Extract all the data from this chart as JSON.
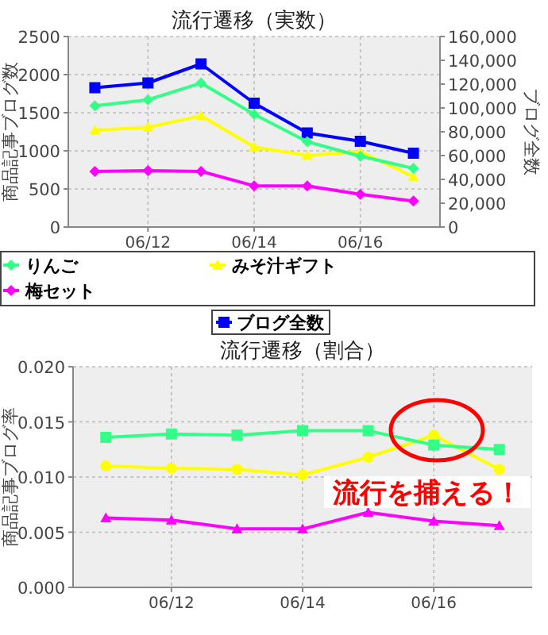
{
  "chart_data": [
    {
      "type": "line",
      "title": "流行遷移（実数）",
      "ylabel": "商品記事ブログ数",
      "y2label": "ブログ全数",
      "categories": [
        null,
        "06/12",
        null,
        "06/14",
        null,
        "06/16",
        null
      ],
      "series": [
        {
          "name": "りんご",
          "color": "#33ff88",
          "marker": "diamond",
          "values": [
            1590,
            1670,
            1890,
            1480,
            1120,
            930,
            770
          ]
        },
        {
          "name": "みそ汁ギフト",
          "color": "#ffff00",
          "marker": "triangle",
          "values": [
            1270,
            1310,
            1460,
            1050,
            940,
            990,
            660
          ]
        },
        {
          "name": "梅セット",
          "color": "#ff00ff",
          "marker": "diamond",
          "values": [
            730,
            740,
            730,
            540,
            540,
            430,
            340
          ]
        },
        {
          "name": "ブログ全数",
          "color": "#0000ff",
          "marker": "square",
          "axis": "y2",
          "values": [
            117000,
            121000,
            137000,
            104000,
            79000,
            72000,
            62000
          ]
        }
      ],
      "ylim": [
        0,
        2500
      ],
      "yticks": [
        0,
        500,
        1000,
        1500,
        2000,
        2500
      ],
      "y2lim": [
        0,
        160000
      ],
      "y2ticks": [
        0,
        {
          "value": 20000,
          "label": "20,000"
        },
        {
          "value": 40000,
          "label": "40,000"
        },
        {
          "value": 60000,
          "label": "60,000"
        },
        {
          "value": 80000,
          "label": "80,000"
        },
        {
          "value": 100000,
          "label": "100,000"
        },
        {
          "value": 120000,
          "label": "120,000"
        },
        {
          "value": 140000,
          "label": "140,000"
        },
        {
          "value": 160000,
          "label": "160,000"
        }
      ],
      "grid": true,
      "legend": "bottom"
    },
    {
      "type": "line",
      "title": "流行遷移（割合）",
      "ylabel": "商品記事ブログ率",
      "categories": [
        null,
        "06/12",
        null,
        "06/14",
        null,
        "06/16",
        null
      ],
      "series": [
        {
          "color": "#33ff88",
          "marker": "square",
          "values": [
            0.0136,
            0.0139,
            0.0138,
            0.0142,
            0.0142,
            0.0129,
            0.0125
          ]
        },
        {
          "color": "#ffff00",
          "marker": "circle",
          "values": [
            0.011,
            0.0108,
            0.0107,
            0.0102,
            0.0118,
            0.0138,
            0.0107
          ]
        },
        {
          "color": "#ff00ff",
          "marker": "triangle",
          "values": [
            0.0063,
            0.0061,
            0.0053,
            0.0053,
            0.0068,
            0.006,
            0.0056
          ]
        }
      ],
      "ylim": [
        0,
        0.02
      ],
      "yticks": [
        {
          "value": 0,
          "label": "0.000"
        },
        {
          "value": 0.005,
          "label": "0.005"
        },
        {
          "value": 0.01,
          "label": "0.010"
        },
        {
          "value": 0.015,
          "label": "0.015"
        },
        {
          "value": 0.02,
          "label": "0.020"
        }
      ],
      "grid": true,
      "annotations": [
        "流行を捕える！"
      ]
    }
  ]
}
